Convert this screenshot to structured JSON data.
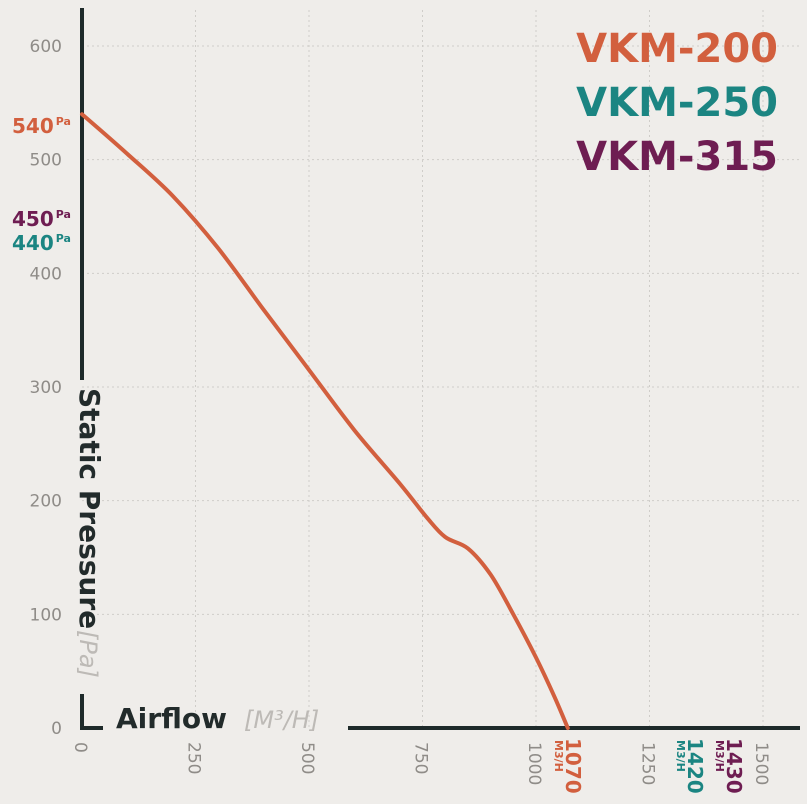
{
  "chart_data": {
    "type": "line",
    "title": "",
    "xlabel": "Airflow",
    "xunit": "[M³/H]",
    "ylabel": "Static Pressure",
    "yunit": "[Pa]",
    "xlim": [
      0,
      1600
    ],
    "ylim": [
      0,
      620
    ],
    "xticks": [
      0,
      250,
      500,
      750,
      1000,
      1250,
      1500
    ],
    "xtick_labels": [
      "0",
      "250",
      "500",
      "750",
      "1000",
      "1250",
      "1500"
    ],
    "yticks": [
      0,
      100,
      200,
      300,
      400,
      500,
      600
    ],
    "ytick_labels": [
      "0",
      "100",
      "200",
      "300",
      "400",
      "500",
      "600"
    ],
    "grid": true,
    "legend_position": "top-right",
    "legend": [
      {
        "label": "VKM-200",
        "color": "#d25f3e"
      },
      {
        "label": "VKM-250",
        "color": "#1b8582"
      },
      {
        "label": "VKM-315",
        "color": "#6e1d52"
      }
    ],
    "series": [
      {
        "name": "VKM-200",
        "color": "#d25f3e",
        "x": [
          0,
          100,
          200,
          300,
          400,
          500,
          600,
          700,
          760,
          800,
          850,
          900,
          950,
          1000,
          1040,
          1070
        ],
        "y": [
          540,
          505,
          468,
          422,
          368,
          315,
          262,
          215,
          185,
          168,
          158,
          135,
          100,
          62,
          28,
          0
        ]
      }
    ],
    "y_markers": [
      {
        "value": "540",
        "unit": "Pa",
        "color": "#d25f3e"
      },
      {
        "value": "450",
        "unit": "Pa",
        "color": "#6e1d52"
      },
      {
        "value": "440",
        "unit": "Pa",
        "color": "#1b8582"
      }
    ],
    "x_markers": [
      {
        "value": "1070",
        "unit": "M3/H",
        "color": "#d25f3e"
      },
      {
        "value": "1420",
        "unit": "M3/H",
        "color": "#1b8582"
      },
      {
        "value": "1430",
        "unit": "M3/H",
        "color": "#6e1d52"
      }
    ]
  }
}
